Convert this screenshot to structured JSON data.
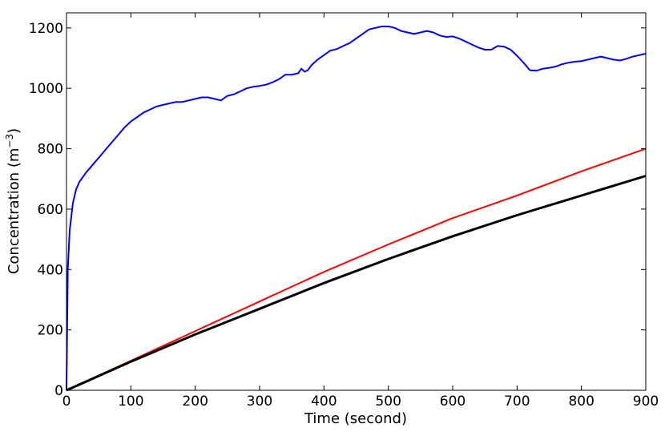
{
  "chart_data": {
    "type": "line",
    "title": "",
    "xlabel": "Time (second)",
    "ylabel_main": "Concentration (m",
    "ylabel_sup": "−3",
    "ylabel_close": ")",
    "xlim": [
      0,
      900
    ],
    "ylim": [
      0,
      1250
    ],
    "x_ticks": [
      0,
      100,
      200,
      300,
      400,
      500,
      600,
      700,
      800,
      900
    ],
    "y_ticks": [
      0,
      200,
      400,
      600,
      800,
      1000,
      1200
    ],
    "x_tick_labels": [
      "0",
      "100",
      "200",
      "300",
      "400",
      "500",
      "600",
      "700",
      "800",
      "900"
    ],
    "y_tick_labels": [
      "0",
      "200",
      "400",
      "600",
      "800",
      "1000",
      "1200"
    ],
    "grid": false,
    "series": [
      {
        "color": "#0000ff",
        "x": [
          0,
          2,
          5,
          10,
          15,
          20,
          30,
          40,
          50,
          60,
          70,
          80,
          90,
          100,
          110,
          120,
          130,
          140,
          150,
          160,
          170,
          180,
          190,
          200,
          210,
          220,
          230,
          240,
          250,
          260,
          270,
          280,
          290,
          300,
          310,
          320,
          330,
          340,
          350,
          360,
          365,
          370,
          375,
          380,
          390,
          400,
          410,
          420,
          430,
          440,
          450,
          460,
          470,
          480,
          490,
          500,
          510,
          520,
          530,
          540,
          550,
          560,
          570,
          580,
          590,
          600,
          610,
          620,
          630,
          640,
          650,
          660,
          670,
          680,
          690,
          700,
          710,
          720,
          730,
          740,
          750,
          760,
          770,
          780,
          790,
          800,
          810,
          820,
          830,
          840,
          850,
          860,
          870,
          880,
          890,
          900
        ],
        "y": [
          0,
          400,
          530,
          620,
          665,
          690,
          720,
          745,
          770,
          795,
          820,
          845,
          870,
          890,
          905,
          920,
          930,
          940,
          945,
          950,
          955,
          955,
          960,
          965,
          970,
          970,
          965,
          960,
          975,
          980,
          990,
          1000,
          1005,
          1008,
          1012,
          1020,
          1030,
          1045,
          1045,
          1050,
          1065,
          1055,
          1060,
          1075,
          1095,
          1110,
          1125,
          1130,
          1140,
          1150,
          1165,
          1180,
          1195,
          1200,
          1205,
          1205,
          1200,
          1190,
          1185,
          1180,
          1185,
          1190,
          1185,
          1175,
          1170,
          1172,
          1165,
          1155,
          1145,
          1135,
          1128,
          1128,
          1140,
          1138,
          1128,
          1108,
          1085,
          1060,
          1058,
          1065,
          1068,
          1072,
          1080,
          1085,
          1088,
          1090,
          1095,
          1100,
          1105,
          1100,
          1095,
          1092,
          1098,
          1105,
          1110,
          1115
        ]
      },
      {
        "color": "#ff0000",
        "x": [
          0,
          100,
          200,
          300,
          400,
          500,
          600,
          700,
          800,
          900
        ],
        "y": [
          0,
          98,
          196,
          294,
          392,
          483,
          570,
          645,
          725,
          800
        ]
      },
      {
        "color": "#000000",
        "x": [
          0,
          100,
          200,
          300,
          400,
          500,
          600,
          700,
          800,
          900
        ],
        "y": [
          0,
          95,
          185,
          270,
          355,
          435,
          510,
          580,
          645,
          710
        ]
      }
    ]
  }
}
